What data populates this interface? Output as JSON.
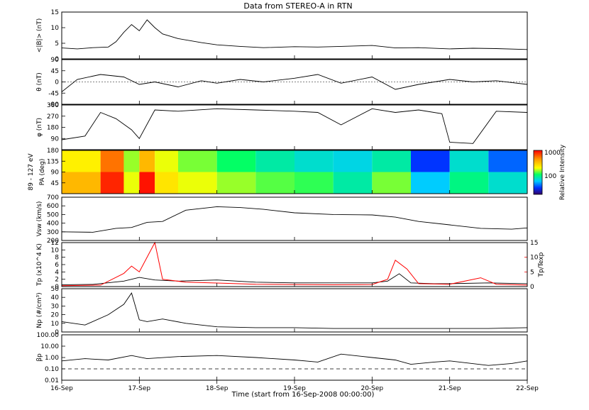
{
  "title": "Data from STEREO-A in RTN",
  "xlabel": "Time (start from 16-Sep-2008 00:00:00)",
  "x_ticks": [
    "16-Sep",
    "17-Sep",
    "18-Sep",
    "19-Sep",
    "20-Sep",
    "21-Sep",
    "22-Sep"
  ],
  "colorbar": {
    "label": "Relative Intensity",
    "ticks": [
      "1000",
      "100"
    ]
  },
  "colors": {
    "trace": "#000000",
    "ratio": "#ff0000"
  },
  "chart_data": [
    {
      "id": "B",
      "type": "line",
      "ylabel": "<|B|> (nT)",
      "ylim": [
        0,
        15
      ],
      "yticks": [
        "0",
        "5",
        "10",
        "15"
      ],
      "x": [
        0,
        0.2,
        0.4,
        0.6,
        0.7,
        0.8,
        0.9,
        1.0,
        1.1,
        1.2,
        1.3,
        1.5,
        1.8,
        2.0,
        2.3,
        2.6,
        3.0,
        3.3,
        3.6,
        4.0,
        4.3,
        4.6,
        5.0,
        5.3,
        5.6,
        6.0
      ],
      "values": [
        3.5,
        3.2,
        3.6,
        3.8,
        5.5,
        8.5,
        11.0,
        9.0,
        12.5,
        10.0,
        8.0,
        6.5,
        5.2,
        4.5,
        4.0,
        3.6,
        3.9,
        3.8,
        4.0,
        4.3,
        3.5,
        3.6,
        3.2,
        3.4,
        3.3,
        3.0
      ]
    },
    {
      "id": "theta",
      "type": "line",
      "ylabel": "θ (nT)",
      "ylim": [
        -90,
        90
      ],
      "yticks": [
        "-90",
        "-45",
        "0",
        "45",
        "90"
      ],
      "x": [
        0,
        0.2,
        0.5,
        0.8,
        1.0,
        1.2,
        1.5,
        1.8,
        2.0,
        2.3,
        2.6,
        3.0,
        3.3,
        3.6,
        4.0,
        4.3,
        4.6,
        5.0,
        5.3,
        5.6,
        6.0
      ],
      "values": [
        -40,
        10,
        30,
        20,
        -10,
        0,
        -20,
        5,
        -5,
        10,
        0,
        15,
        30,
        -5,
        20,
        -30,
        -10,
        10,
        0,
        5,
        -10
      ]
    },
    {
      "id": "phi",
      "type": "line",
      "ylabel": "φ (nT)",
      "ylim": [
        0,
        360
      ],
      "yticks": [
        "90",
        "180",
        "270",
        "360"
      ],
      "x": [
        0,
        0.3,
        0.5,
        0.7,
        0.9,
        1.0,
        1.2,
        1.5,
        2.0,
        2.5,
        3.0,
        3.3,
        3.6,
        4.0,
        4.3,
        4.6,
        4.9,
        5.0,
        5.3,
        5.6,
        6.0
      ],
      "values": [
        80,
        110,
        300,
        250,
        160,
        90,
        320,
        310,
        330,
        320,
        310,
        300,
        200,
        330,
        300,
        320,
        290,
        60,
        50,
        310,
        300
      ]
    },
    {
      "id": "pa",
      "type": "heatmap",
      "ylabel": "PA (deg)",
      "outer_label": "89 - 127 eV",
      "ylim": [
        0,
        180
      ],
      "yticks": [
        "45",
        "90",
        "135",
        "180"
      ],
      "x_bins": [
        0,
        0.5,
        0.8,
        1.0,
        1.2,
        1.5,
        2.0,
        2.5,
        3.0,
        3.5,
        4.0,
        4.5,
        5.0,
        5.5,
        6.0
      ],
      "intensity_low_pa": [
        300,
        800,
        150,
        900,
        200,
        150,
        120,
        100,
        90,
        60,
        110,
        40,
        70,
        50
      ],
      "intensity_high_pa": [
        180,
        500,
        120,
        300,
        150,
        110,
        80,
        60,
        50,
        45,
        60,
        20,
        50,
        25
      ]
    },
    {
      "id": "V",
      "type": "line",
      "ylabel": "Vsw (km/s)",
      "ylim": [
        200,
        700
      ],
      "yticks": [
        "200",
        "300",
        "400",
        "500",
        "600",
        "700"
      ],
      "x": [
        0,
        0.4,
        0.7,
        0.9,
        1.1,
        1.3,
        1.6,
        2.0,
        2.3,
        2.6,
        3.0,
        3.5,
        4.0,
        4.3,
        4.6,
        5.0,
        5.4,
        5.8,
        6.0
      ],
      "values": [
        300,
        295,
        340,
        350,
        410,
        420,
        550,
        590,
        580,
        560,
        520,
        500,
        495,
        470,
        420,
        380,
        340,
        330,
        345
      ]
    },
    {
      "id": "Tp",
      "type": "line",
      "ylabel": "Tp (x10^4 K)",
      "right_ylabel": "Tp/Texp",
      "ylim": [
        0,
        12
      ],
      "yticks": [
        "0",
        "2",
        "4",
        "6",
        "8",
        "10",
        "12"
      ],
      "right_ylim": [
        0,
        15
      ],
      "right_yticks": [
        "0",
        "5",
        "10",
        "15"
      ],
      "x": [
        0,
        0.4,
        0.8,
        1.0,
        1.2,
        1.5,
        2.0,
        2.5,
        3.0,
        3.5,
        4.0,
        4.2,
        4.35,
        4.5,
        4.8,
        5.0,
        5.5,
        6.0
      ],
      "values": [
        0.5,
        0.6,
        1.5,
        2.5,
        1.8,
        1.5,
        1.8,
        1.2,
        1.0,
        1.0,
        1.0,
        1.5,
        3.5,
        1.0,
        0.8,
        0.8,
        1.0,
        0.8
      ],
      "ratio_x": [
        0,
        0.5,
        0.8,
        0.9,
        1.0,
        1.2,
        1.3,
        1.6,
        2.0,
        2.5,
        3.0,
        3.5,
        4.0,
        4.2,
        4.3,
        4.45,
        4.6,
        5.0,
        5.4,
        5.6,
        6.0
      ],
      "ratio_values": [
        0.3,
        0.5,
        4.5,
        7.0,
        5.0,
        15.0,
        2.5,
        1.5,
        1.2,
        0.8,
        0.7,
        0.6,
        0.7,
        2.5,
        9.0,
        6.0,
        1.0,
        0.8,
        3.0,
        0.8,
        0.5
      ]
    },
    {
      "id": "Np",
      "type": "line",
      "ylabel": "Np (#/cm³)",
      "ylim": [
        0,
        50
      ],
      "yticks": [
        "0",
        "10",
        "20",
        "30",
        "40",
        "50"
      ],
      "x": [
        0,
        0.3,
        0.6,
        0.8,
        0.9,
        1.0,
        1.1,
        1.3,
        1.6,
        2.0,
        2.5,
        3.0,
        3.5,
        4.0,
        4.5,
        5.0,
        5.5,
        6.0
      ],
      "values": [
        12,
        8,
        20,
        32,
        45,
        14,
        12,
        15,
        10,
        6,
        5,
        5,
        4,
        4,
        4,
        4,
        4,
        5
      ]
    },
    {
      "id": "beta",
      "type": "line",
      "ylabel": "βp",
      "yscale": "log",
      "ylim": [
        0.01,
        100
      ],
      "yticks": [
        "0.01",
        "0.10",
        "1.00",
        "10.00",
        "100.00"
      ],
      "reference_line": 0.1,
      "x": [
        0,
        0.3,
        0.6,
        0.9,
        1.1,
        1.5,
        2.0,
        2.5,
        3.0,
        3.3,
        3.6,
        4.0,
        4.3,
        4.5,
        4.8,
        5.0,
        5.5,
        5.8,
        6.0
      ],
      "values": [
        0.5,
        0.8,
        0.6,
        1.5,
        0.8,
        1.2,
        1.5,
        1.0,
        0.6,
        0.4,
        2.0,
        1.0,
        0.6,
        0.25,
        0.4,
        0.5,
        0.2,
        0.3,
        0.5
      ]
    }
  ]
}
